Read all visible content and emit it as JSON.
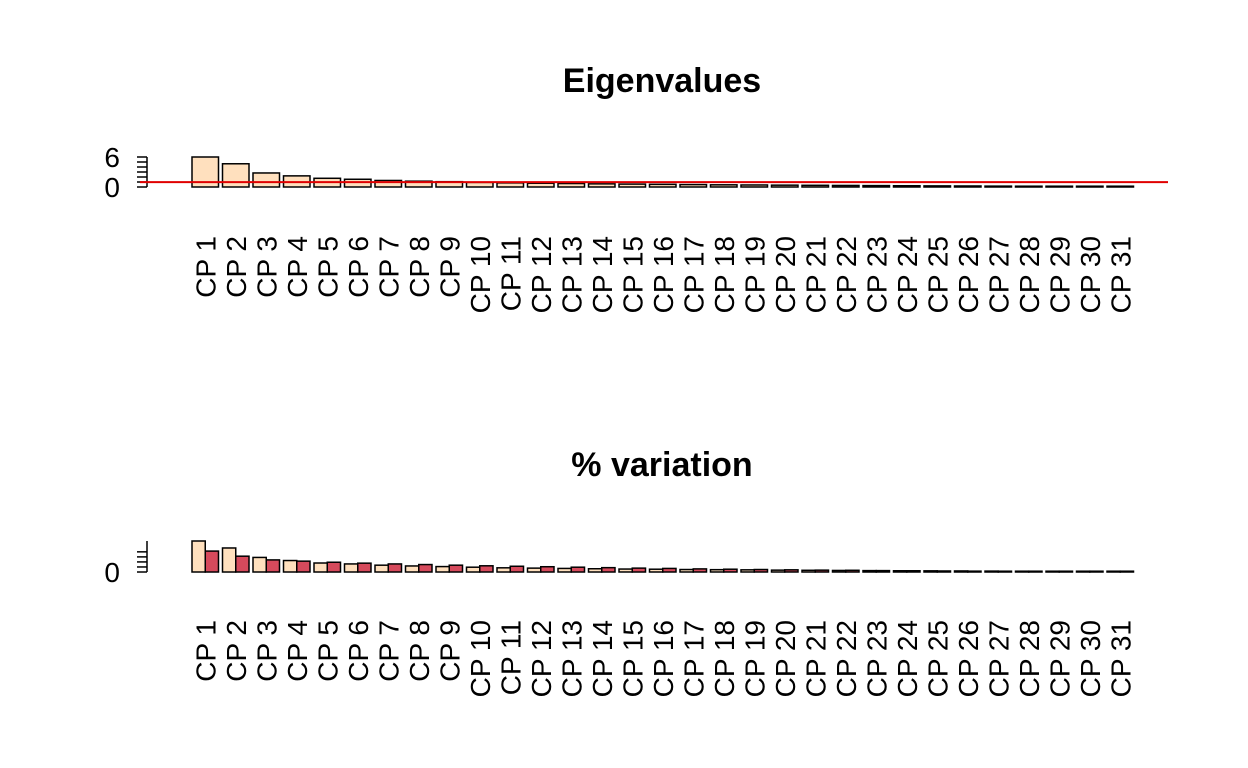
{
  "colors": {
    "bar_primary": "#FFE0BE",
    "bar_secondary": "#D64A5C",
    "bar_stroke": "#000000",
    "reference_line": "#E00000"
  },
  "chart_data": [
    {
      "type": "bar",
      "title": "Eigenvalues",
      "xlabel": "",
      "ylabel": "",
      "categories": [
        "CP 1",
        "CP 2",
        "CP 3",
        "CP 4",
        "CP 5",
        "CP 6",
        "CP 7",
        "CP 8",
        "CP 9",
        "CP 10",
        "CP 11",
        "CP 12",
        "CP 13",
        "CP 14",
        "CP 15",
        "CP 16",
        "CP 17",
        "CP 18",
        "CP 19",
        "CP 20",
        "CP 21",
        "CP 22",
        "CP 23",
        "CP 24",
        "CP 25",
        "CP 26",
        "CP 27",
        "CP 28",
        "CP 29",
        "CP 30",
        "CP 31"
      ],
      "y_tick_labels": [
        "0",
        "6"
      ],
      "ylim": [
        0,
        6.2
      ],
      "reference_line": 1,
      "series": [
        {
          "values": [
            6.2,
            4.8,
            2.9,
            2.3,
            1.8,
            1.6,
            1.35,
            1.2,
            1.1,
            0.95,
            0.85,
            0.78,
            0.72,
            0.65,
            0.6,
            0.55,
            0.5,
            0.45,
            0.42,
            0.38,
            0.35,
            0.32,
            0.29,
            0.26,
            0.23,
            0.21,
            0.18,
            0.16,
            0.13,
            0.1,
            0.05
          ]
        }
      ],
      "grid": false,
      "legend": "none"
    },
    {
      "type": "bar",
      "title": "% variation",
      "xlabel": "",
      "ylabel": "",
      "categories": [
        "CP 1",
        "CP 2",
        "CP 3",
        "CP 4",
        "CP 5",
        "CP 6",
        "CP 7",
        "CP 8",
        "CP 9",
        "CP 10",
        "CP 11",
        "CP 12",
        "CP 13",
        "CP 14",
        "CP 15",
        "CP 16",
        "CP 17",
        "CP 18",
        "CP 19",
        "CP 20",
        "CP 21",
        "CP 22",
        "CP 23",
        "CP 24",
        "CP 25",
        "CP 26",
        "CP 27",
        "CP 28",
        "CP 29",
        "CP 30",
        "CP 31"
      ],
      "y_tick_labels": [
        "0"
      ],
      "ylim": [
        0,
        20
      ],
      "series": [
        {
          "values": [
            20,
            15.5,
            9.4,
            7.4,
            5.8,
            5.2,
            4.4,
            3.9,
            3.5,
            3.1,
            2.7,
            2.5,
            2.3,
            2.1,
            1.9,
            1.8,
            1.6,
            1.5,
            1.4,
            1.2,
            1.1,
            1.0,
            0.9,
            0.8,
            0.75,
            0.68,
            0.58,
            0.52,
            0.42,
            0.32,
            0.16
          ]
        },
        {
          "values": [
            13.5,
            10.2,
            7.8,
            7.0,
            6.3,
            5.7,
            5.2,
            4.8,
            4.4,
            4.0,
            3.7,
            3.4,
            3.1,
            2.8,
            2.5,
            2.3,
            2.0,
            1.8,
            1.6,
            1.4,
            1.2,
            1.1,
            0.9,
            0.8,
            0.65,
            0.55,
            0.45,
            0.35,
            0.25,
            0.15,
            0.08
          ]
        }
      ],
      "grid": false,
      "legend": "none"
    }
  ]
}
